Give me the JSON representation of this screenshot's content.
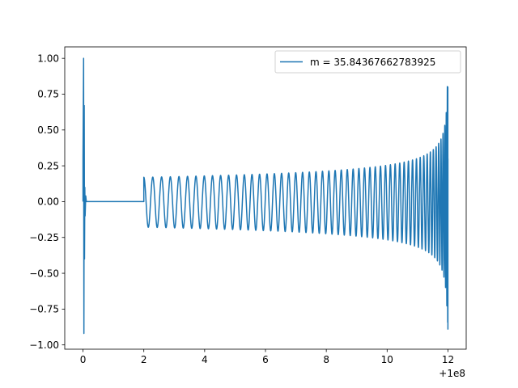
{
  "chart_data": {
    "type": "line",
    "title": "",
    "xlabel": "",
    "ylabel": "",
    "x_offset_label": "+1e8",
    "xlim": [
      -0.6,
      12.6
    ],
    "ylim": [
      -1.03,
      1.08
    ],
    "x_ticks": [
      {
        "value": 0,
        "label": "0"
      },
      {
        "value": 2,
        "label": "2"
      },
      {
        "value": 4,
        "label": "4"
      },
      {
        "value": 6,
        "label": "6"
      },
      {
        "value": 8,
        "label": "8"
      },
      {
        "value": 10,
        "label": "10"
      },
      {
        "value": 12,
        "label": "12"
      }
    ],
    "y_ticks": [
      {
        "value": 1.0,
        "label": "1.00"
      },
      {
        "value": 0.75,
        "label": "0.75"
      },
      {
        "value": 0.5,
        "label": "0.50"
      },
      {
        "value": 0.25,
        "label": "0.25"
      },
      {
        "value": 0.0,
        "label": "0.00"
      },
      {
        "value": -0.25,
        "label": "−0.25"
      },
      {
        "value": -0.5,
        "label": "−0.50"
      },
      {
        "value": -0.75,
        "label": "−0.75"
      },
      {
        "value": -1.0,
        "label": "−1.00"
      }
    ],
    "grid": false,
    "legend": {
      "position": "upper right"
    },
    "series": [
      {
        "name": "m = 35.84367662783925",
        "color": "#1f77b4",
        "description_points": {
          "x": [
            0.0,
            0.0,
            0.0,
            0.05,
            0.1,
            2.0,
            2.0,
            4.0,
            6.0,
            8.0,
            10.0,
            11.0,
            11.5,
            11.8,
            11.95,
            12.0,
            12.0
          ],
          "envelope_upper": [
            1.0,
            0.67,
            0.0,
            0.1,
            0.0,
            0.0,
            0.17,
            0.175,
            0.18,
            0.2,
            0.25,
            0.3,
            0.38,
            0.5,
            0.65,
            0.8,
            0.0
          ],
          "envelope_lower": [
            -0.92,
            -0.4,
            0.0,
            -0.1,
            0.0,
            0.0,
            -0.17,
            -0.175,
            -0.18,
            -0.2,
            -0.26,
            -0.31,
            -0.4,
            -0.55,
            -0.75,
            -0.89,
            0.0
          ]
        }
      }
    ]
  }
}
